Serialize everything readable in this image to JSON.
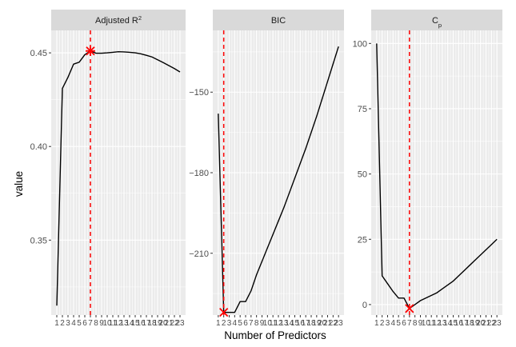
{
  "chart_data": {
    "type": "line",
    "xlabel": "Number of Predictors",
    "ylabel": "value",
    "x": [
      1,
      2,
      3,
      4,
      5,
      6,
      7,
      8,
      9,
      10,
      11,
      12,
      13,
      14,
      15,
      16,
      17,
      18,
      19,
      20,
      21,
      22,
      23
    ],
    "x_tick_labels": [
      "1",
      "2",
      "3",
      "4",
      "5",
      "6",
      "7",
      "8",
      "9",
      "10",
      "11",
      "12",
      "13",
      "14",
      "15",
      "16",
      "17",
      "18",
      "19",
      "20",
      "21",
      "22",
      "23"
    ],
    "panels": [
      {
        "title": "Adjusted R",
        "title_sup": "2",
        "ylim": [
          0.31,
          0.462
        ],
        "yticks": [
          0.35,
          0.4,
          0.45
        ],
        "ytick_labels": [
          "0.35",
          "0.40",
          "0.45"
        ],
        "minor_yticks": [
          0.325,
          0.375,
          0.425
        ],
        "values": [
          0.315,
          0.431,
          0.437,
          0.444,
          0.445,
          0.449,
          0.451,
          0.4498,
          0.4498,
          0.45,
          0.4503,
          0.4506,
          0.4505,
          0.4503,
          0.45,
          0.4495,
          0.4487,
          0.4478,
          0.4463,
          0.4448,
          0.4432,
          0.4416,
          0.4398
        ],
        "best_x": 7,
        "best_marker": "star"
      },
      {
        "title": "BIC",
        "ylim": [
          -233,
          -127
        ],
        "yticks": [
          -150,
          -180,
          -210
        ],
        "ytick_labels": [
          "-150",
          "-180",
          "-210"
        ],
        "minor_yticks": [
          -135,
          -165,
          -195,
          -225
        ],
        "values": [
          -158,
          -232,
          -232,
          -232,
          -228,
          -228,
          -224,
          -218,
          -213,
          -208,
          -203,
          -198,
          -193,
          -187.5,
          -182,
          -176.5,
          -171,
          -165,
          -159,
          -152.5,
          -146,
          -139.5,
          -133
        ],
        "best_x": 2,
        "best_marker": "x"
      },
      {
        "title": "C",
        "title_sub": "p",
        "ylim": [
          -4,
          105
        ],
        "yticks": [
          0,
          25,
          50,
          75,
          100
        ],
        "ytick_labels": [
          "0",
          "25",
          "50",
          "75",
          "100"
        ],
        "minor_yticks": [
          12.5,
          37.5,
          62.5,
          87.5
        ],
        "values": [
          100,
          11,
          8,
          5,
          2.5,
          2.5,
          -1.5,
          0,
          1.5,
          2.5,
          3.5,
          4.5,
          6,
          7.5,
          9,
          11,
          13,
          15,
          17,
          19,
          21,
          23,
          25
        ],
        "best_x": 7,
        "best_marker": "x"
      }
    ]
  }
}
